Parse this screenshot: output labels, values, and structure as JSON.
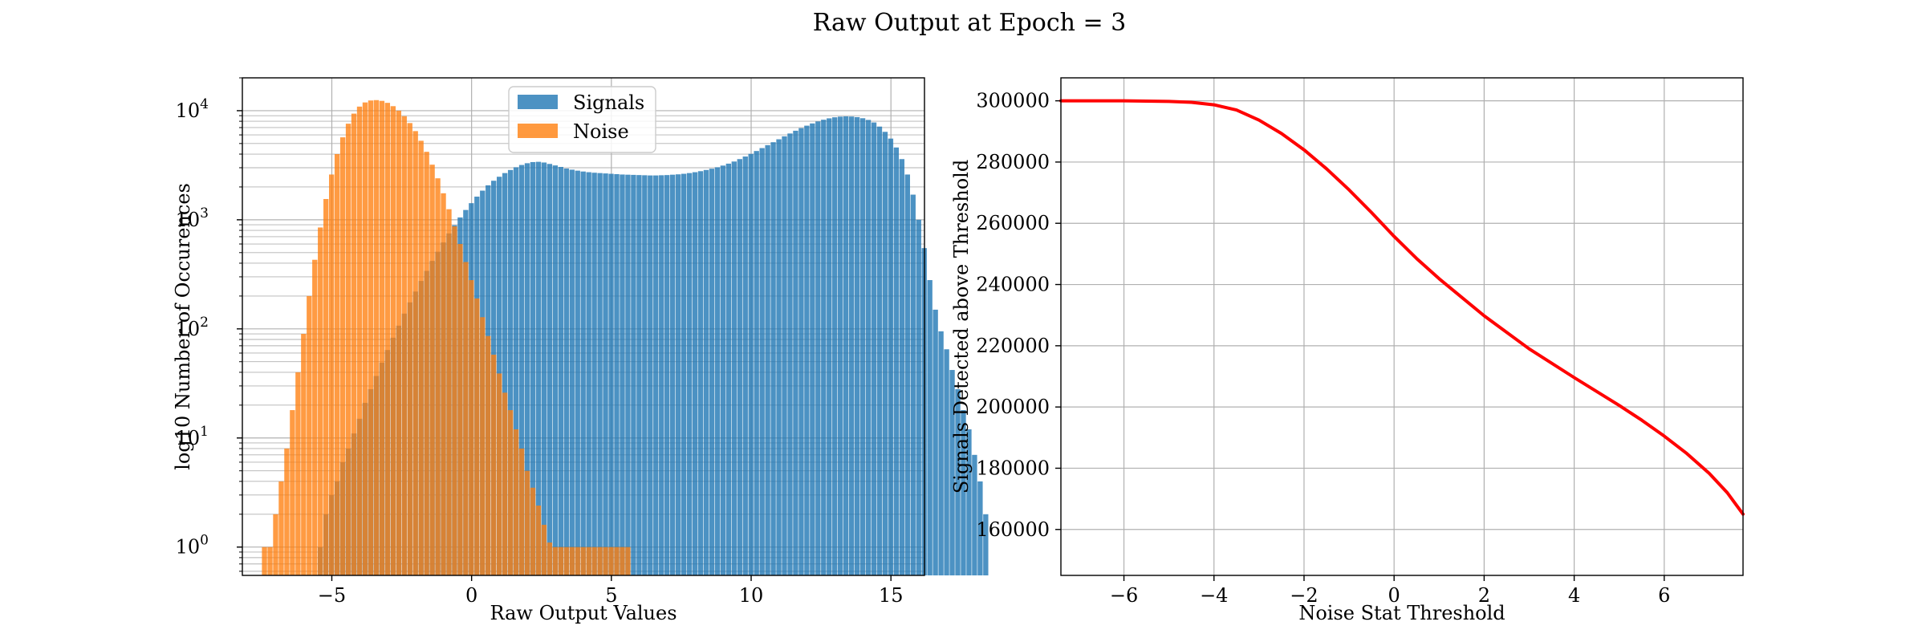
{
  "figure": {
    "title": "Raw Output at Epoch = 3"
  },
  "chart_data": [
    {
      "type": "bar",
      "subtype": "histogram",
      "title": "",
      "xlabel": "Raw Output Values",
      "ylabel": "log10 Number of Occurences",
      "yscale": "log",
      "xlim": [
        -8.2,
        16.2
      ],
      "ylim": [
        0.55,
        20000
      ],
      "xticks": [
        -5,
        0,
        5,
        10,
        15
      ],
      "xtick_labels": [
        "−5",
        "0",
        "5",
        "10",
        "15"
      ],
      "ytick_exponents": [
        0,
        1,
        2,
        3,
        4
      ],
      "ytick_base": "10",
      "grid": true,
      "legend": "upper center",
      "bin_width": 0.2,
      "series": [
        {
          "name": "Signals",
          "color": "#1f77b4",
          "bin_start": -5.5,
          "counts": [
            1,
            2,
            3,
            4,
            6,
            8,
            11,
            15,
            21,
            28,
            37,
            49,
            64,
            83,
            107,
            138,
            175,
            220,
            275,
            340,
            420,
            510,
            620,
            750,
            890,
            1050,
            1230,
            1420,
            1630,
            1850,
            2070,
            2280,
            2480,
            2680,
            2860,
            3030,
            3180,
            3300,
            3380,
            3400,
            3350,
            3250,
            3150,
            3050,
            2950,
            2880,
            2820,
            2770,
            2730,
            2700,
            2680,
            2660,
            2640,
            2620,
            2600,
            2590,
            2580,
            2570,
            2560,
            2550,
            2550,
            2560,
            2570,
            2590,
            2610,
            2640,
            2680,
            2730,
            2790,
            2860,
            2940,
            3030,
            3140,
            3270,
            3420,
            3600,
            3800,
            4020,
            4270,
            4540,
            4830,
            5140,
            5470,
            5820,
            6180,
            6550,
            6920,
            7290,
            7640,
            7970,
            8260,
            8510,
            8700,
            8820,
            8870,
            8840,
            8730,
            8530,
            8230,
            7800,
            7150,
            6400,
            5550,
            4600,
            3600,
            2600,
            1700,
            1000,
            550,
            280,
            150,
            95,
            65,
            42,
            28,
            18,
            12,
            7,
            4,
            2
          ]
        },
        {
          "name": "Noise",
          "color": "#ff7f0e",
          "bin_start": -7.5,
          "counts": [
            1,
            1,
            2,
            4,
            8,
            18,
            40,
            90,
            200,
            430,
            850,
            1550,
            2600,
            4000,
            5700,
            7600,
            9400,
            10900,
            11900,
            12400,
            12500,
            12300,
            11800,
            11000,
            10000,
            8900,
            7700,
            6500,
            5300,
            4200,
            3200,
            2400,
            1750,
            1250,
            870,
            600,
            410,
            280,
            190,
            128,
            86,
            58,
            39,
            26,
            18,
            12,
            8,
            5,
            3.5,
            2.4,
            1.6,
            1.1,
            1,
            1,
            1,
            1,
            1,
            1,
            1,
            1,
            1,
            1,
            1,
            1,
            1,
            1
          ]
        }
      ]
    },
    {
      "type": "line",
      "title": "",
      "xlabel": "Noise Stat Threshold",
      "ylabel": "Signals Detected above Threshold",
      "xlim": [
        -7.4,
        7.75
      ],
      "ylim": [
        145000,
        307500
      ],
      "xticks": [
        -6,
        -4,
        -2,
        0,
        2,
        4,
        6
      ],
      "xtick_labels": [
        "−6",
        "−4",
        "−2",
        "0",
        "2",
        "4",
        "6"
      ],
      "yticks": [
        160000,
        180000,
        200000,
        220000,
        240000,
        260000,
        280000,
        300000
      ],
      "ytick_labels": [
        "160000",
        "180000",
        "200000",
        "220000",
        "240000",
        "260000",
        "280000",
        "300000"
      ],
      "grid": true,
      "series": [
        {
          "name": "",
          "color": "#ff0000",
          "x": [
            -7.4,
            -6.0,
            -5.0,
            -4.5,
            -4.0,
            -3.5,
            -3.0,
            -2.5,
            -2.0,
            -1.5,
            -1.0,
            -0.5,
            0.0,
            0.5,
            1.0,
            2.0,
            3.0,
            4.0,
            5.0,
            5.5,
            6.0,
            6.5,
            7.0,
            7.4,
            7.75
          ],
          "y": [
            300000,
            300000,
            299800,
            299500,
            298700,
            297000,
            293700,
            289300,
            284000,
            277800,
            270900,
            263500,
            255700,
            248500,
            241900,
            229800,
            219000,
            209600,
            200500,
            195700,
            190500,
            184800,
            178300,
            172000,
            165000
          ]
        }
      ]
    }
  ]
}
